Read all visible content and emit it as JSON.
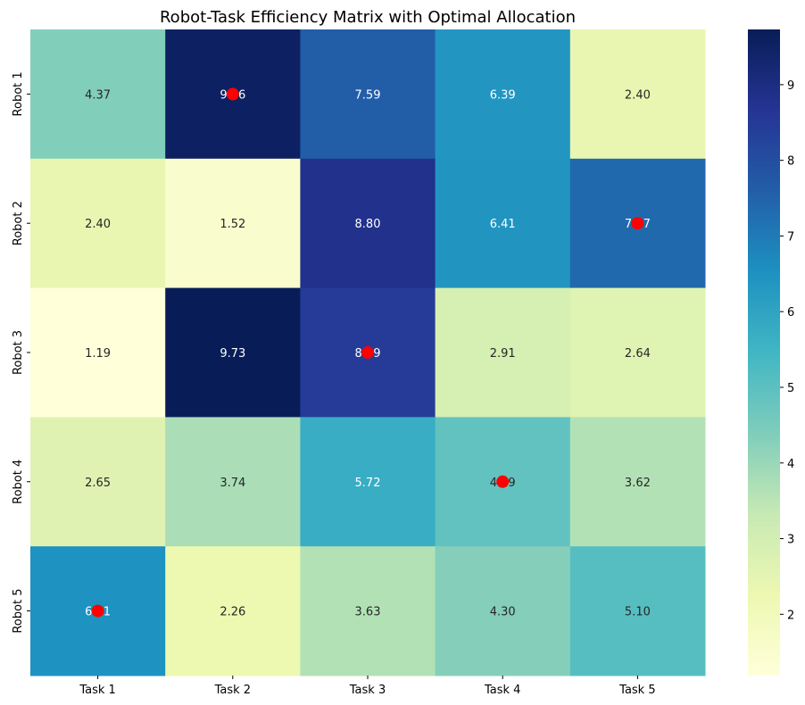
{
  "chart_data": {
    "type": "heatmap",
    "title": "Robot-Task Efficiency Matrix with Optimal Allocation",
    "xlabel": "",
    "ylabel": "",
    "x_categories": [
      "Task 1",
      "Task 2",
      "Task 3",
      "Task 4",
      "Task 5"
    ],
    "y_categories": [
      "Robot 1",
      "Robot 2",
      "Robot 3",
      "Robot 4",
      "Robot 5"
    ],
    "values": [
      [
        4.37,
        9.56,
        7.59,
        6.39,
        2.4
      ],
      [
        2.4,
        1.52,
        8.8,
        6.41,
        7.37
      ],
      [
        1.19,
        9.73,
        8.49,
        2.91,
        2.64
      ],
      [
        2.65,
        3.74,
        5.72,
        4.89,
        3.62
      ],
      [
        6.51,
        2.26,
        3.63,
        4.3,
        5.1
      ]
    ],
    "colormap": "YlGnBu",
    "vmin": 1.19,
    "vmax": 9.73,
    "colorbar_ticks": [
      2,
      3,
      4,
      5,
      6,
      7,
      8,
      9
    ],
    "optimal_allocation": [
      {
        "robot": "Robot 1",
        "task": "Task 2"
      },
      {
        "robot": "Robot 2",
        "task": "Task 5"
      },
      {
        "robot": "Robot 3",
        "task": "Task 3"
      },
      {
        "robot": "Robot 4",
        "task": "Task 4"
      },
      {
        "robot": "Robot 5",
        "task": "Task 1"
      }
    ],
    "marker_color": "#ff0000"
  }
}
